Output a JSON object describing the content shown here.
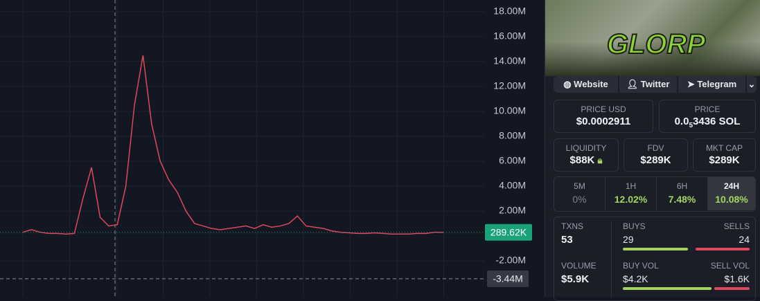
{
  "chart_data": {
    "type": "line",
    "color": "#e0475a",
    "grid": true,
    "ylim": [
      -4.89,
      18.94
    ],
    "yticks": [
      {
        "value": 18,
        "label": "18.00M"
      },
      {
        "value": 16,
        "label": "16.00M"
      },
      {
        "value": 14,
        "label": "14.00M"
      },
      {
        "value": 12,
        "label": "12.00M"
      },
      {
        "value": 10,
        "label": "10.00M"
      },
      {
        "value": 8,
        "label": "8.00M"
      },
      {
        "value": 6,
        "label": "6.00M"
      },
      {
        "value": 4,
        "label": "4.00M"
      },
      {
        "value": 2,
        "label": "2.00M"
      },
      {
        "value": -2,
        "label": "-2.00M"
      }
    ],
    "values": [
      0.3,
      0.5,
      0.3,
      0.2,
      0.2,
      0.15,
      0.2,
      3.0,
      5.5,
      1.5,
      0.8,
      0.9,
      4.0,
      10.5,
      14.5,
      9.0,
      6.0,
      4.5,
      3.5,
      2.0,
      1.0,
      0.8,
      0.6,
      0.5,
      0.6,
      0.7,
      0.8,
      0.6,
      0.9,
      0.7,
      0.8,
      1.0,
      1.6,
      0.8,
      0.7,
      0.6,
      0.4,
      0.3,
      0.25,
      0.2,
      0.2,
      0.25,
      0.2,
      0.15,
      0.15,
      0.15,
      0.2,
      0.2,
      0.3,
      0.29
    ],
    "last_price": {
      "value": 0.28962,
      "label": "289.62K"
    },
    "crosshair": {
      "value": -3.44,
      "label": "-3.44M"
    }
  },
  "panel": {
    "banner": {
      "logo_text": "GLORP"
    },
    "links": [
      "Website",
      "Twitter",
      "Telegram"
    ],
    "price_usd": {
      "label": "PRICE USD",
      "value": "$0.0002911"
    },
    "price_sol": {
      "label": "PRICE",
      "prefix": "0.0",
      "zeros": "5",
      "digits": "3436 SOL"
    },
    "stats": [
      {
        "label": "LIQUIDITY",
        "value": "$88K"
      },
      {
        "label": "FDV",
        "value": "$289K"
      },
      {
        "label": "MKT CAP",
        "value": "$289K"
      }
    ],
    "changes": [
      {
        "label": "5M",
        "value": "0%"
      },
      {
        "label": "1H",
        "value": "12.02%"
      },
      {
        "label": "6H",
        "value": "7.48%"
      },
      {
        "label": "24H",
        "value": "10.08%"
      }
    ],
    "txns": {
      "label": "TXNS",
      "value": "53",
      "buys_label": "BUYS",
      "buys": 29,
      "sells_label": "SELLS",
      "sells": 24
    },
    "volume": {
      "label": "VOLUME",
      "value": "$5.9K",
      "buy_label": "BUY VOL",
      "buy": "$4.2K",
      "sell_label": "SELL VOL",
      "sell": "$1.6K"
    }
  }
}
